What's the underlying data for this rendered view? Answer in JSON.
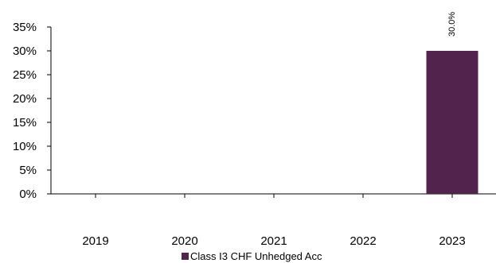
{
  "chart_data": {
    "type": "bar",
    "categories": [
      "2019",
      "2020",
      "2021",
      "2022",
      "2023"
    ],
    "series": [
      {
        "name": "Class I3 CHF Unhedged Acc",
        "values": [
          null,
          null,
          null,
          null,
          30.0
        ],
        "color": "#52234d"
      }
    ],
    "data_labels": [
      "",
      "",
      "",
      "",
      "30.0%"
    ],
    "ylim": [
      0,
      35
    ],
    "yticks": [
      0,
      5,
      10,
      15,
      20,
      25,
      30,
      35
    ],
    "y_tick_format": "percent",
    "grid": false,
    "legend_position": "bottom"
  }
}
